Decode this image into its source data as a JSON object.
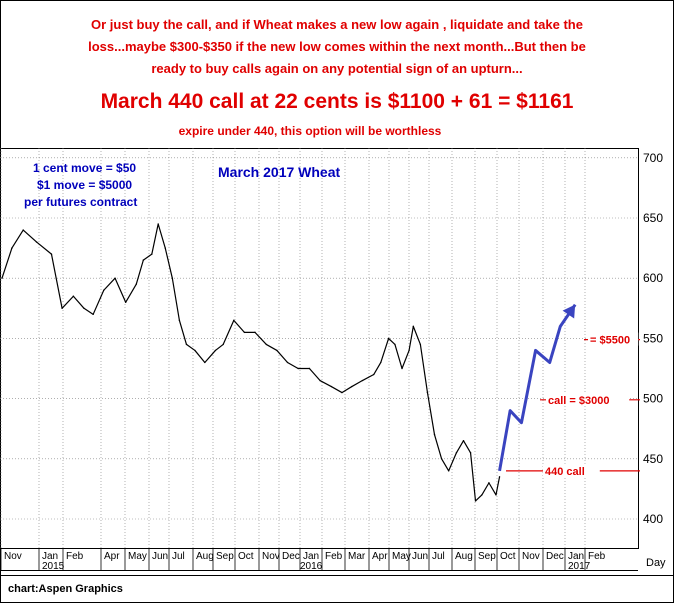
{
  "notes": {
    "top_lines": [
      "Or just buy the call, and if Wheat makes a new low again , liquidate and take the",
      "loss...maybe $300-$350 if the new low comes within the next month...But then be",
      "ready to buy calls again on any potential sign of an upturn..."
    ],
    "headline": "March 440 call at 22 cents is $1100 + 61 = $1161",
    "subline": "expire under 440, this option will be worthless"
  },
  "footer": {
    "credit": "chart:Aspen Graphics"
  },
  "colors": {
    "red": "#e00000",
    "blue_text": "#0000bb",
    "projection_blue": "#3a44c0",
    "price_black": "#000000",
    "grid": "#808080"
  },
  "chart_data": {
    "type": "line",
    "title": "March 2017 Wheat",
    "info_box": [
      "1 cent move = $50",
      "$1 move = $5000",
      "per futures contract"
    ],
    "yaxis_ticks": [
      400,
      450,
      500,
      550,
      600,
      650,
      700
    ],
    "ylim": [
      385,
      710
    ],
    "axis_unit_label": "Day",
    "xaxis_months": [
      "Nov",
      "Jan",
      "Feb",
      "Apr",
      "May",
      "Jun",
      "Jul",
      "Aug",
      "Sep",
      "Oct",
      "Nov",
      "Dec",
      "Jan",
      "Feb",
      "Mar",
      "Apr",
      "May",
      "Jun",
      "Jul",
      "Aug",
      "Sep",
      "Oct",
      "Nov",
      "Dec",
      "Jan",
      "Feb"
    ],
    "xaxis_years": [
      "2015",
      "2016",
      "2017"
    ],
    "grid": true,
    "series": [
      {
        "name": "",
        "style": "price",
        "x": [
          "2014-11-01",
          "2014-11-15",
          "2014-12-01",
          "2014-12-20",
          "2015-01-10",
          "2015-01-25",
          "2015-02-10",
          "2015-02-25",
          "2015-03-10",
          "2015-03-25",
          "2015-04-10",
          "2015-04-25",
          "2015-05-10",
          "2015-05-20",
          "2015-06-01",
          "2015-06-10",
          "2015-06-20",
          "2015-06-30",
          "2015-07-10",
          "2015-07-20",
          "2015-08-01",
          "2015-08-15",
          "2015-08-30",
          "2015-09-10",
          "2015-09-25",
          "2015-10-10",
          "2015-10-25",
          "2015-11-10",
          "2015-11-25",
          "2015-12-10",
          "2015-12-25",
          "2016-01-10",
          "2016-01-25",
          "2016-02-10",
          "2016-02-25",
          "2016-03-10",
          "2016-03-25",
          "2016-04-10",
          "2016-04-20",
          "2016-05-01",
          "2016-05-10",
          "2016-05-20",
          "2016-05-30",
          "2016-06-05",
          "2016-06-15",
          "2016-06-25",
          "2016-07-05",
          "2016-07-15",
          "2016-07-25",
          "2016-08-05",
          "2016-08-15",
          "2016-08-25",
          "2016-09-01",
          "2016-09-10",
          "2016-09-20",
          "2016-09-30",
          "2016-10-05"
        ],
        "y": [
          600,
          625,
          640,
          630,
          620,
          575,
          585,
          575,
          570,
          590,
          600,
          580,
          595,
          615,
          620,
          645,
          625,
          600,
          565,
          545,
          540,
          530,
          540,
          545,
          565,
          555,
          555,
          545,
          540,
          530,
          525,
          525,
          515,
          510,
          505,
          510,
          515,
          520,
          530,
          550,
          545,
          525,
          540,
          560,
          545,
          505,
          470,
          450,
          440,
          455,
          465,
          455,
          415,
          420,
          430,
          420,
          435
        ]
      },
      {
        "name": "",
        "style": "projection",
        "x": [
          "2016-10-05",
          "2016-10-20",
          "2016-11-05",
          "2016-11-25",
          "2016-12-15",
          "2016-12-30",
          "2017-01-20"
        ],
        "y": [
          440,
          490,
          480,
          540,
          530,
          560,
          578
        ]
      }
    ],
    "reference_lines": [
      {
        "label": "440 call",
        "y": 440
      },
      {
        "label": "call = $3000",
        "y": 499
      },
      {
        "label": "= $5500",
        "y": 549
      }
    ]
  }
}
